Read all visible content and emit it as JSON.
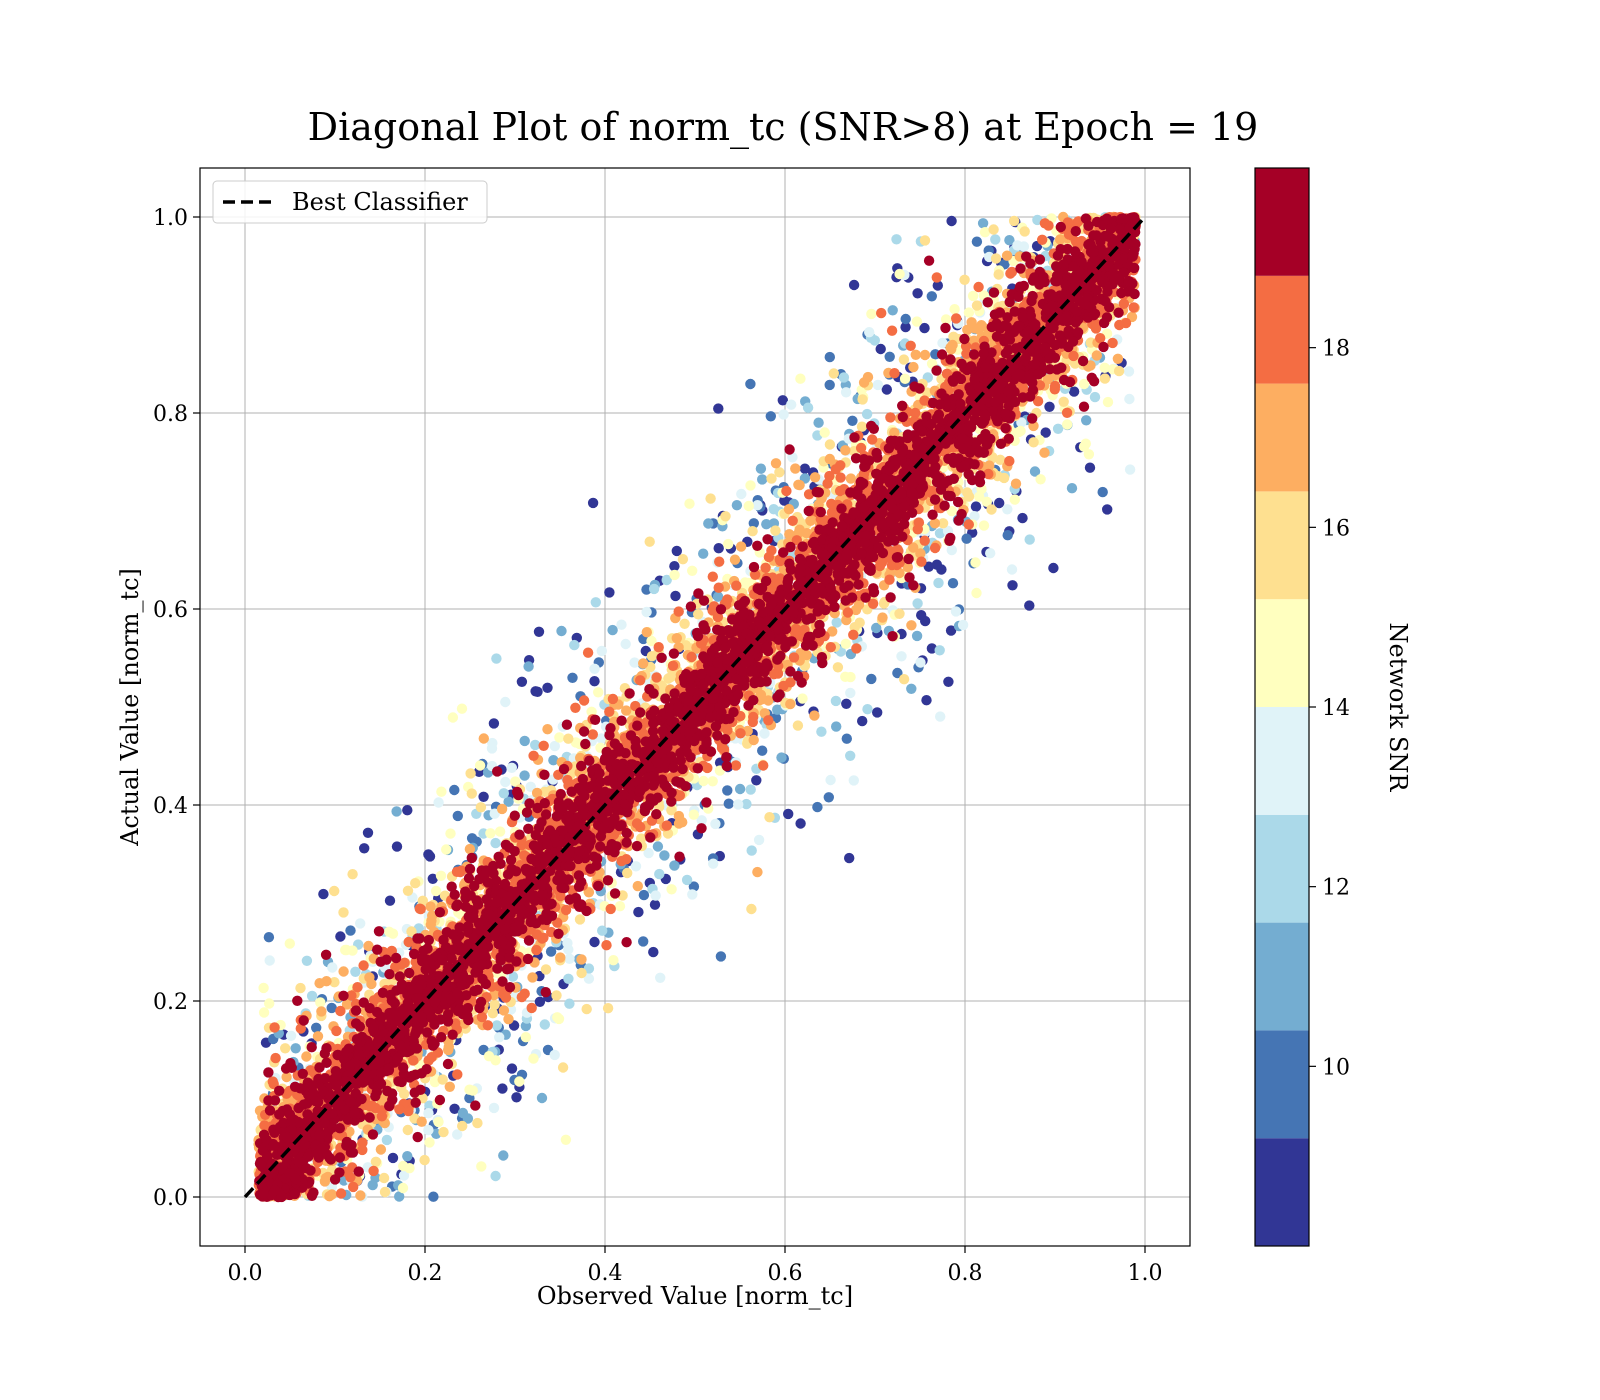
{
  "chart_data": {
    "type": "scatter",
    "title": "Diagonal Plot of norm_tc (SNR>8) at Epoch = 19",
    "xlabel": "Observed Value [norm_tc]",
    "ylabel": "Actual Value [norm_tc]",
    "xlim": [
      -0.05,
      1.05
    ],
    "ylim": [
      -0.05,
      1.05
    ],
    "xticks": [
      "0.0",
      "0.2",
      "0.4",
      "0.6",
      "0.8",
      "1.0"
    ],
    "yticks": [
      "0.0",
      "0.2",
      "0.4",
      "0.6",
      "0.8",
      "1.0"
    ],
    "grid": true,
    "legend": {
      "position": "top-left",
      "entries": [
        "Best Classifier"
      ]
    },
    "reference_line": {
      "name": "Best Classifier",
      "style": "dashed",
      "color": "#000000",
      "x": [
        0,
        1
      ],
      "y": [
        0,
        1
      ]
    },
    "colorbar": {
      "label": "Network SNR",
      "range": [
        8,
        20
      ],
      "ticks": [
        "10",
        "12",
        "14",
        "16",
        "18"
      ],
      "colors": [
        "#313695",
        "#4575b4",
        "#74add1",
        "#abd9e9",
        "#e0f3f8",
        "#ffffbf",
        "#fee090",
        "#fdae61",
        "#f46d43",
        "#a50026"
      ],
      "levels": [
        8,
        9.2,
        10.4,
        11.6,
        12.8,
        14,
        15.2,
        16.4,
        17.6,
        18.8,
        20
      ]
    },
    "points_description_values": {
      "n_points_approx": 9000,
      "distribution": "dense band along y=x with spread ~0.1, high SNR near diagonal, low SNR outliers"
    }
  }
}
